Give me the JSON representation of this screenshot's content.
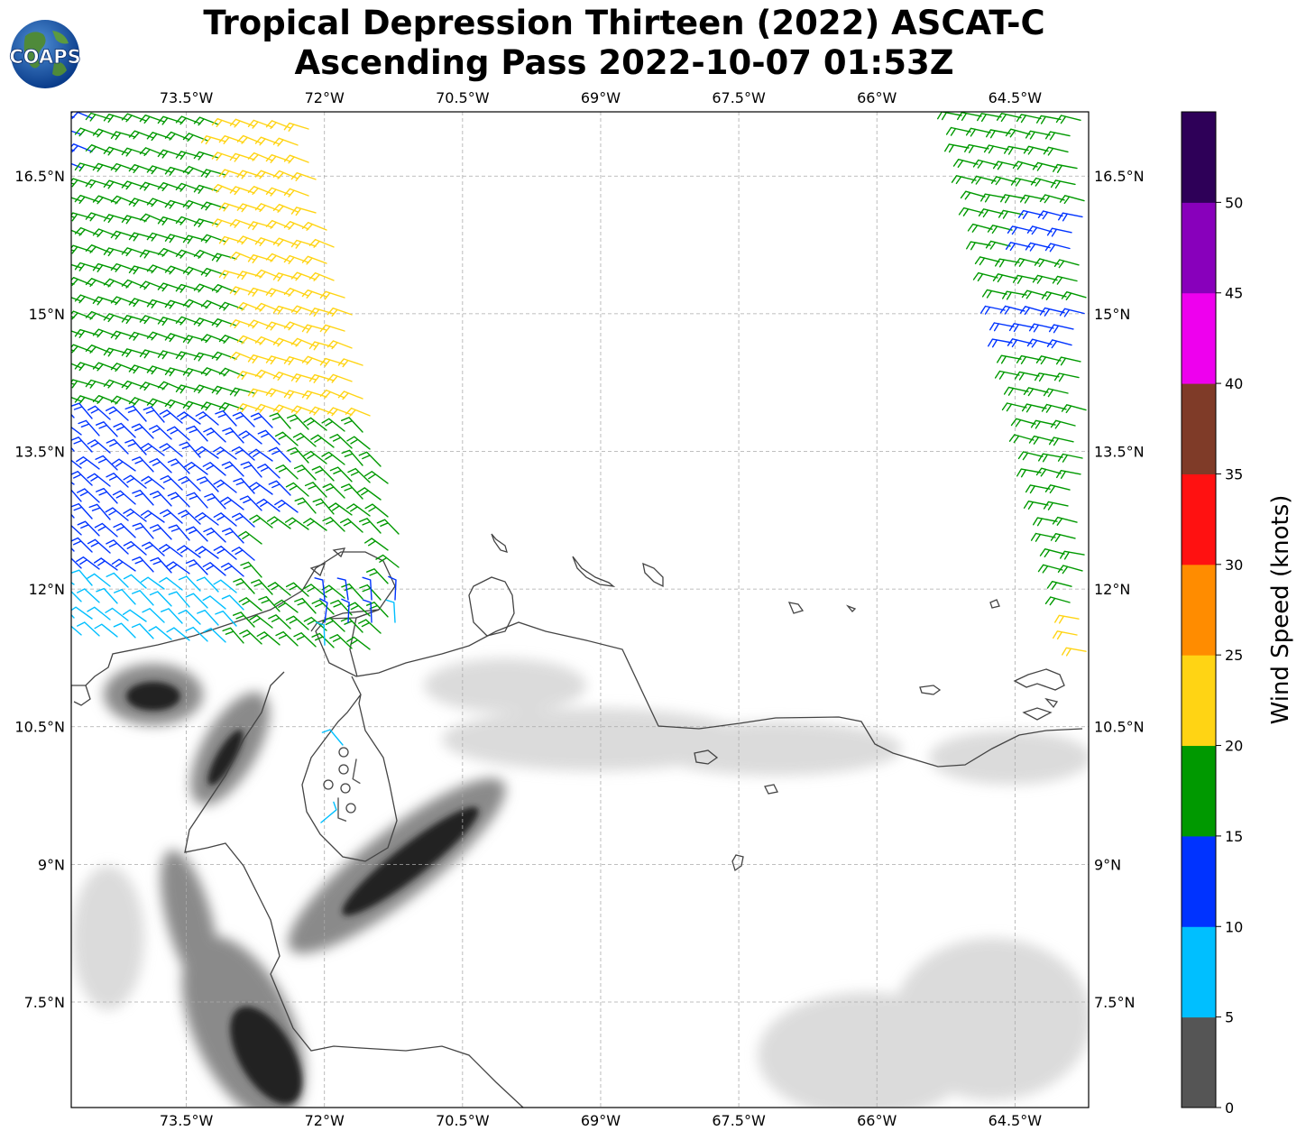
{
  "title": {
    "line1": "Tropical Depression Thirteen (2022) ASCAT-C",
    "line2": "Ascending Pass 2022-10-07 01:53Z"
  },
  "logo": {
    "text": "COAPS"
  },
  "map": {
    "lon_range": [
      -74.75,
      -63.7
    ],
    "lat_range": [
      6.35,
      17.2
    ],
    "lon_ticks": [
      {
        "value": -73.5,
        "label": "73.5°W"
      },
      {
        "value": -72.0,
        "label": "72°W"
      },
      {
        "value": -70.5,
        "label": "70.5°W"
      },
      {
        "value": -69.0,
        "label": "69°W"
      },
      {
        "value": -67.5,
        "label": "67.5°W"
      },
      {
        "value": -66.0,
        "label": "66°W"
      },
      {
        "value": -64.5,
        "label": "64.5°W"
      }
    ],
    "lat_ticks": [
      {
        "value": 16.5,
        "label": "16.5°N"
      },
      {
        "value": 15.0,
        "label": "15°N"
      },
      {
        "value": 13.5,
        "label": "13.5°N"
      },
      {
        "value": 12.0,
        "label": "12°N"
      },
      {
        "value": 10.5,
        "label": "10.5°N"
      },
      {
        "value": 9.0,
        "label": "9°N"
      },
      {
        "value": 7.5,
        "label": "7.5°N"
      }
    ],
    "grid": true
  },
  "colorbar": {
    "label": "Wind Speed (knots)",
    "ticks": [
      "0",
      "5",
      "10",
      "15",
      "20",
      "25",
      "30",
      "35",
      "40",
      "45",
      "50"
    ],
    "colors": [
      "#555555",
      "#00bfff",
      "#0033ff",
      "#009900",
      "#ffd414",
      "#ff8c00",
      "#ff1111",
      "#7f3b28",
      "#ee00ee",
      "#8800bb",
      "#2e0058"
    ]
  },
  "colors": {
    "coast": "#444444",
    "grid": "#aaaaaa"
  }
}
